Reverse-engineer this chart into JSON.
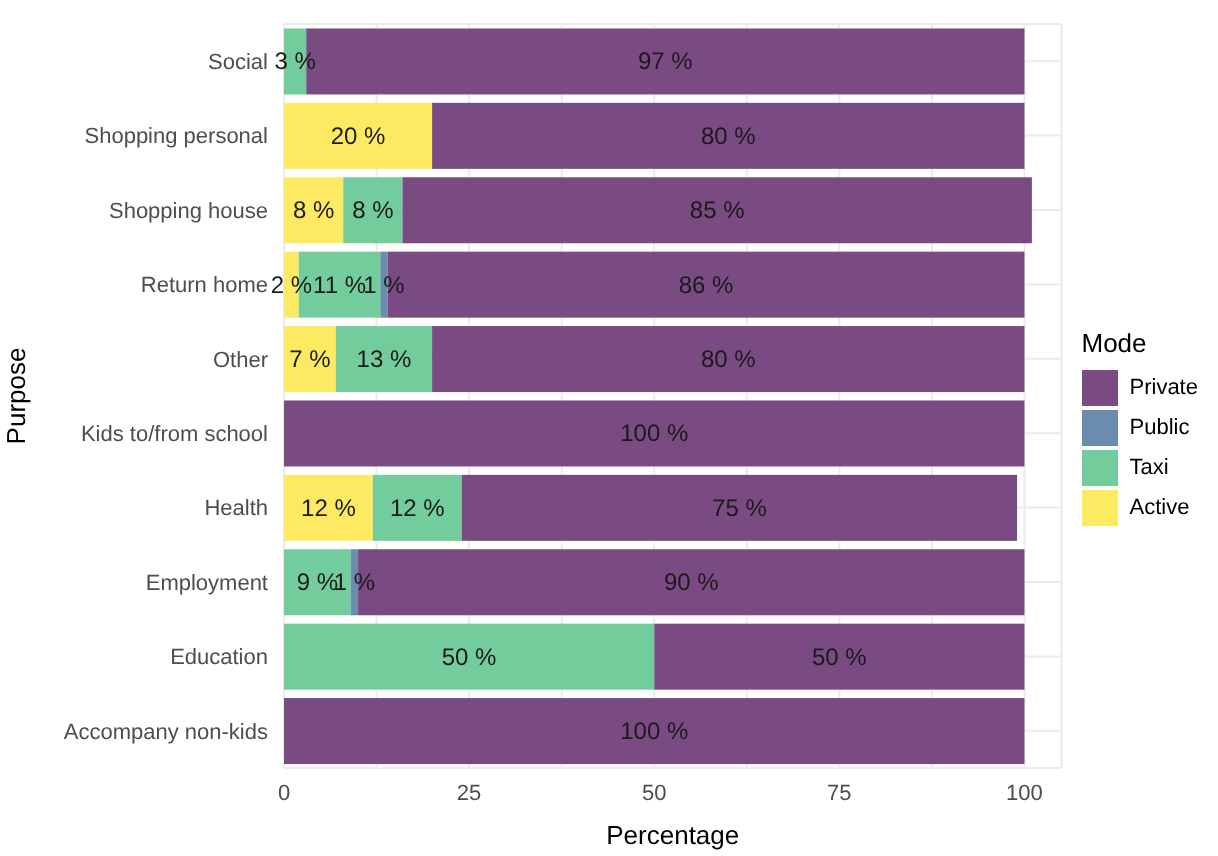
{
  "chart_data": {
    "type": "bar",
    "orientation": "horizontal",
    "stacked": true,
    "xlabel": "Percentage",
    "ylabel": "Purpose",
    "legend_title": "Mode",
    "legend": "right",
    "grid": true,
    "categories": [
      "Social",
      "Shopping personal",
      "Shopping house",
      "Return home",
      "Other",
      "Kids to/from school",
      "Health",
      "Employment",
      "Education",
      "Accompany non-kids"
    ],
    "xlim": [
      0,
      105
    ],
    "xticks": [
      0,
      {
        "value": 12.5,
        "label": null
      },
      25,
      {
        "value": 37.5,
        "label": null
      },
      50,
      {
        "value": 62.5,
        "label": null
      },
      75,
      {
        "value": 87.5,
        "label": null
      },
      100
    ],
    "series": [
      {
        "name": "Active",
        "color": "#fde962",
        "values": [
          0,
          20,
          8,
          2,
          7,
          0,
          12,
          0,
          0,
          0
        ],
        "value_labels": [
          null,
          "20 %",
          "8 %",
          "2 %",
          "7 %",
          null,
          "12 %",
          null,
          null,
          null
        ]
      },
      {
        "name": "Taxi",
        "color": "#72cc9c",
        "values": [
          3,
          0,
          8,
          11,
          13,
          0,
          12,
          9,
          50,
          0
        ],
        "value_labels": [
          "3 %",
          null,
          "8 %",
          "11 %",
          "13 %",
          null,
          "12 %",
          "9 %",
          "50 %",
          null
        ]
      },
      {
        "name": "Public",
        "color": "#6a8caf",
        "values": [
          0,
          0,
          0,
          1,
          0,
          0,
          0,
          1,
          0,
          0
        ],
        "value_labels": [
          null,
          null,
          null,
          "1 %",
          null,
          null,
          null,
          "1 %",
          null,
          null
        ]
      },
      {
        "name": "Private",
        "color": "#7a4b83",
        "values": [
          97,
          80,
          85,
          86,
          80,
          100,
          75,
          90,
          50,
          100
        ],
        "value_labels": [
          "97 %",
          "80 %",
          "85 %",
          "86 %",
          "80 %",
          "100 %",
          "75 %",
          "90 %",
          "50 %",
          "100 %"
        ]
      }
    ]
  }
}
